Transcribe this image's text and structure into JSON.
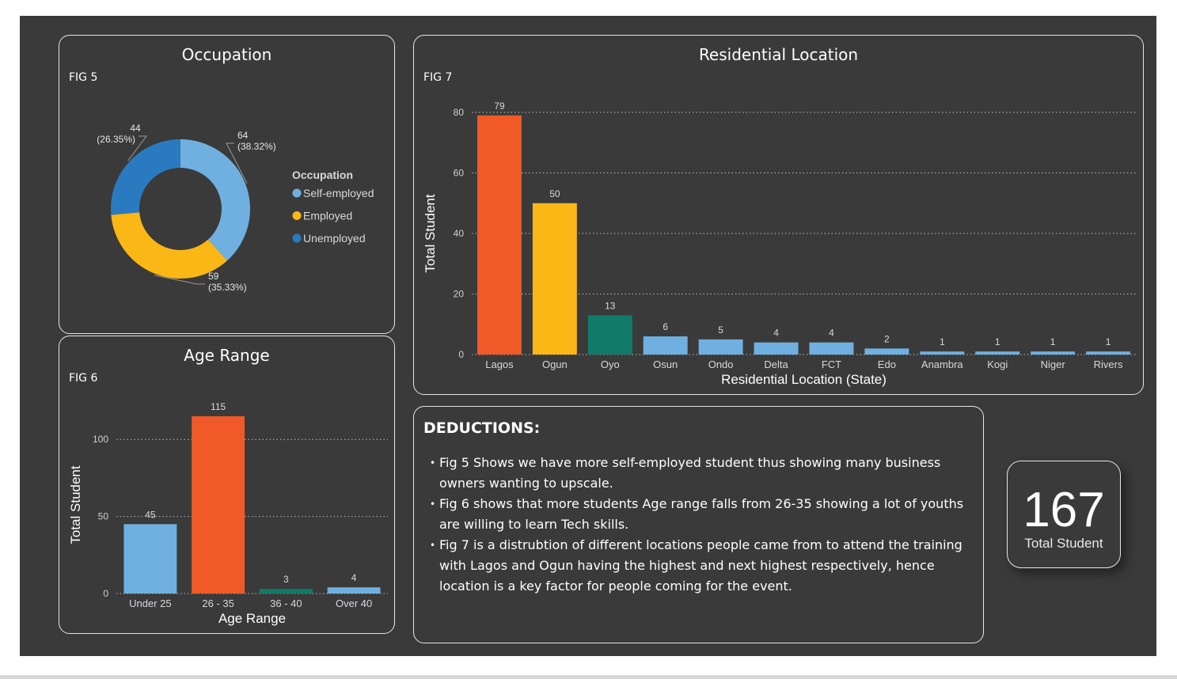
{
  "colors": {
    "light_blue": "#6fb0e0",
    "orange": "#f05a28",
    "yellow": "#fbb715",
    "teal": "#117a68",
    "blue": "#2a7abf",
    "background": "#3a3a3a"
  },
  "occupation": {
    "title": "Occupation",
    "fig": "FIG 5",
    "legend_title": "Occupation",
    "slice_labels": [
      {
        "count": "64",
        "pct": "(38.32%)"
      },
      {
        "count": "59",
        "pct": "(35.33%)"
      },
      {
        "count": "44",
        "pct": "(26.35%)"
      }
    ]
  },
  "age": {
    "title": "Age Range",
    "fig": "FIG 6"
  },
  "residential": {
    "title": "Residential Location",
    "fig": "FIG 7"
  },
  "deductions": {
    "title": "DEDUCTIONS:",
    "items": [
      "Fig 5 Shows we have more self-employed student thus showing many business owners wanting to upscale.",
      "Fig 6 shows that more students Age range falls from 26-35 showing a lot of youths are willing to learn Tech skills.",
      "Fig 7 is a distrubtion of different locations people came from to attend the training with Lagos and Ogun having the highest and next highest respectively, hence location is a key factor for people coming for the event."
    ]
  },
  "kpi": {
    "value": "167",
    "label": "Total Student"
  },
  "chart_data": [
    {
      "id": "occupation",
      "type": "pie",
      "title": "Occupation",
      "categories": [
        "Self-employed",
        "Employed",
        "Unemployed"
      ],
      "values": [
        64,
        59,
        44
      ],
      "percentages": [
        "38.32%",
        "35.33%",
        "26.35%"
      ],
      "colors": [
        "#6fb0e0",
        "#fbb715",
        "#2a7abf"
      ],
      "legend_title": "Occupation",
      "legend_position": "right"
    },
    {
      "id": "age",
      "type": "bar",
      "title": "Age Range",
      "xlabel": "Age Range",
      "ylabel": "Total Student",
      "categories": [
        "Under 25",
        "26 - 35",
        "36 - 40",
        "Over 40"
      ],
      "values": [
        45,
        115,
        3,
        4
      ],
      "colors": [
        "#6fb0e0",
        "#f05a28",
        "#117a68",
        "#6fb0e0"
      ],
      "ylim": [
        0,
        115
      ],
      "yticks": [
        0,
        50,
        100
      ],
      "grid": true
    },
    {
      "id": "residential",
      "type": "bar",
      "title": "Residential Location",
      "xlabel": "Residential Location (State)",
      "ylabel": "Total Student",
      "categories": [
        "Lagos",
        "Ogun",
        "Oyo",
        "Osun",
        "Ondo",
        "Delta",
        "FCT",
        "Edo",
        "Anambra",
        "Kogi",
        "Niger",
        "Rivers"
      ],
      "values": [
        79,
        50,
        13,
        6,
        5,
        4,
        4,
        2,
        1,
        1,
        1,
        1
      ],
      "colors": [
        "#f05a28",
        "#fbb715",
        "#117a68",
        "#6fb0e0",
        "#6fb0e0",
        "#6fb0e0",
        "#6fb0e0",
        "#6fb0e0",
        "#6fb0e0",
        "#6fb0e0",
        "#6fb0e0",
        "#6fb0e0"
      ],
      "ylim": [
        0,
        80
      ],
      "yticks": [
        0,
        20,
        40,
        60,
        80
      ],
      "grid": true
    }
  ]
}
